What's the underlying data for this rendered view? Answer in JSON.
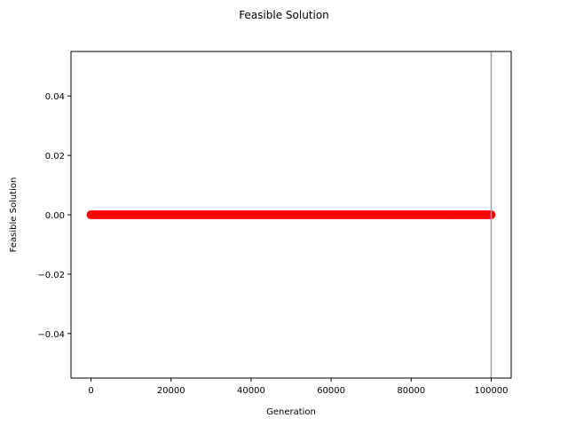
{
  "chart_data": {
    "type": "scatter",
    "title": "Feasible Solution",
    "xlabel": "Generation",
    "ylabel": "Feasible Solution",
    "xlim": [
      -5000,
      105000
    ],
    "ylim": [
      -0.055,
      0.055
    ],
    "xticks": [
      0,
      20000,
      40000,
      60000,
      80000,
      100000
    ],
    "xtick_labels": [
      "0",
      "20000",
      "40000",
      "60000",
      "80000",
      "100000"
    ],
    "yticks": [
      -0.04,
      -0.02,
      0.0,
      0.02,
      0.04
    ],
    "ytick_labels": [
      "−0.04",
      "−0.02",
      "0.00",
      "0.02",
      "0.04"
    ],
    "series": [
      {
        "color": "#ff0000",
        "x_range": [
          0,
          100000
        ],
        "y": 0.0,
        "marker": "circle"
      }
    ],
    "reference_line": {
      "x": 100000,
      "color": "#a0a0a0"
    },
    "grid": false,
    "legend": "none"
  }
}
